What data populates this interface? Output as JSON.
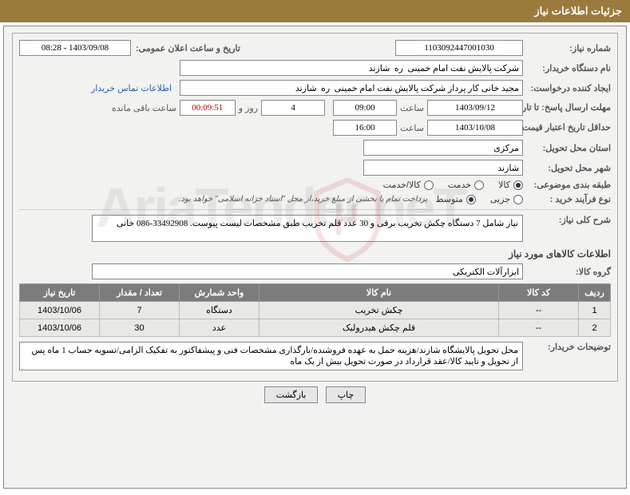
{
  "header": {
    "title": "جزئیات اطلاعات نیاز"
  },
  "fields": {
    "need_number_label": "شماره نیاز:",
    "need_number": "1103092447001030",
    "announce_label": "تاریخ و ساعت اعلان عمومی:",
    "announce_value": "1403/09/08 - 08:28",
    "buyer_label": "نام دستگاه خریدار:",
    "buyer_value": "شرکت پالایش نفت امام خمینی  ره  شازند",
    "requester_label": "ایجاد کننده درخواست:",
    "requester_value": "مجید خانی کار پرداز شرکت پالایش نفت امام خمینی  ره  شازند",
    "contact_link": "اطلاعات تماس خریدار",
    "deadline_send_label": "مهلت ارسال پاسخ: تا تاریخ:",
    "deadline_send_date": "1403/09/12",
    "time_label": "ساعت",
    "deadline_send_time": "09:00",
    "days_value": "4",
    "days_and_label": "روز و",
    "countdown": "00:09:51",
    "remaining_label": "ساعت باقی مانده",
    "validity_label": "حداقل تاریخ اعتبار قیمت: تا تاریخ:",
    "validity_date": "1403/10/08",
    "validity_time": "16:00",
    "province_label": "استان محل تحویل:",
    "province_value": "مرکزی",
    "city_label": "شهر محل تحویل:",
    "city_value": "شازند",
    "subject_class_label": "طبقه بندی موضوعی:",
    "radio_kala": "کالا",
    "radio_khadamat": "خدمت",
    "radio_kala_khadamat": "کالا/خدمت",
    "purchase_type_label": "نوع فرآیند خرید :",
    "radio_jozei": "جزیی",
    "radio_motevaset": "متوسط",
    "purchase_note": "پرداخت تمام یا بخشی از مبلغ خرید،از محل \"اسناد خزانه اسلامی\" خواهد بود.",
    "desc_label": "شرح کلی نیاز:",
    "desc_value": "نیاز شامل 7 دستگاه چکش تخریب برقی و 30 عدد قلم تخریب طبق مشخصات لیست پیوست. 33492908-086 خانی",
    "goods_info_title": "اطلاعات کالاهای مورد نیاز",
    "goods_group_label": "گروه کالا:",
    "goods_group_value": "ابزارآلات الکتریکی",
    "buyer_notes_label": "توضیحات خریدار:",
    "buyer_notes_value": "محل تحویل پالایشگاه شازند/هزینه حمل به عهده فروشنده/بارگذاری مشخصات فنی و پیشفاکتور به تفکیک الزامی/تسویه حساب 1 ماه پس از تحویل و تایید کالا/عقد قرارداد در صورت تحویل بیش از یک ماه"
  },
  "table": {
    "headers": {
      "row": "ردیف",
      "code": "کد کالا",
      "name": "نام کالا",
      "unit": "واحد شمارش",
      "qty": "تعداد / مقدار",
      "date": "تاریخ نیاز"
    },
    "rows": [
      {
        "row": "1",
        "code": "--",
        "name": "چکش تخریب",
        "unit": "دستگاه",
        "qty": "7",
        "date": "1403/10/06"
      },
      {
        "row": "2",
        "code": "--",
        "name": "قلم چکش هیدرولیک",
        "unit": "عدد",
        "qty": "30",
        "date": "1403/10/06"
      }
    ]
  },
  "buttons": {
    "print": "چاپ",
    "back": "بازگشت"
  },
  "watermark": {
    "text": "AriaTender.neT"
  }
}
